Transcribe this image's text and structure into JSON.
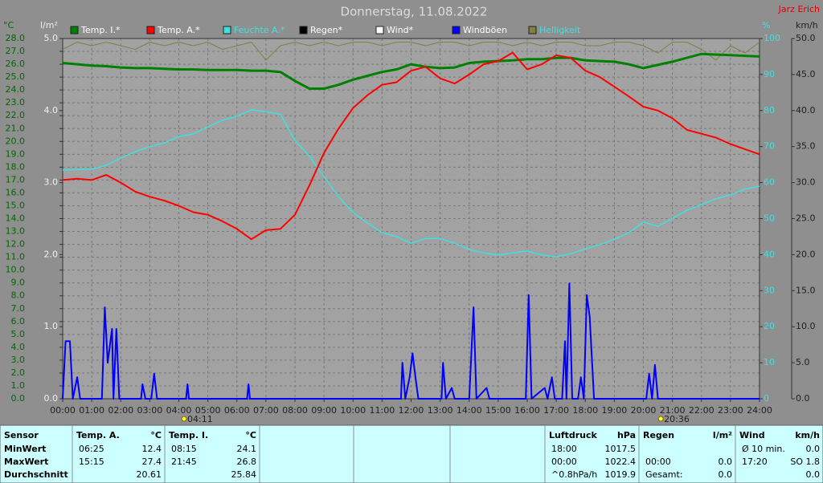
{
  "header": {
    "title": "Donnerstag, 11.08.2022",
    "author": "Jarz Erich"
  },
  "chart_data": {
    "type": "line",
    "ylabel": "°C",
    "y4label": "l/m²",
    "y2label": "%",
    "y3label": "km/h",
    "xlim": [
      0,
      24
    ],
    "xticks": [
      {
        "value": 0,
        "label": "00:00"
      },
      {
        "value": 1,
        "label": "01:00"
      },
      {
        "value": 2,
        "label": "02:00"
      },
      {
        "value": 3,
        "label": "03:00"
      },
      {
        "value": 4,
        "label": "04:00"
      },
      {
        "value": 5,
        "label": "05:00"
      },
      {
        "value": 6,
        "label": "06:00"
      },
      {
        "value": 7,
        "label": "07:00"
      },
      {
        "value": 8,
        "label": "08:00"
      },
      {
        "value": 9,
        "label": "09:00"
      },
      {
        "value": 10,
        "label": "10:00"
      },
      {
        "value": 11,
        "label": "11:00"
      },
      {
        "value": 12,
        "label": "12:00"
      },
      {
        "value": 13,
        "label": "13:00"
      },
      {
        "value": 14,
        "label": "14:00"
      },
      {
        "value": 15,
        "label": "15:00"
      },
      {
        "value": 16,
        "label": "16:00"
      },
      {
        "value": 17,
        "label": "17:00"
      },
      {
        "value": 18,
        "label": "18:00"
      },
      {
        "value": 19,
        "label": "19:00"
      },
      {
        "value": 20,
        "label": "20:00"
      },
      {
        "value": 21,
        "label": "21:00"
      },
      {
        "value": 22,
        "label": "22:00"
      },
      {
        "value": 23,
        "label": "23:00"
      },
      {
        "value": 24,
        "label": "24:00"
      }
    ],
    "ylim": [
      0,
      28
    ],
    "yticks": [
      {
        "value": 0,
        "label": "0.0"
      },
      {
        "value": 1,
        "label": "1.0"
      },
      {
        "value": 2,
        "label": "2.0"
      },
      {
        "value": 3,
        "label": "3.0"
      },
      {
        "value": 4,
        "label": "4.0"
      },
      {
        "value": 5,
        "label": "5.0"
      },
      {
        "value": 6,
        "label": "6.0"
      },
      {
        "value": 7,
        "label": "7.0"
      },
      {
        "value": 8,
        "label": "8.0"
      },
      {
        "value": 9,
        "label": "9.0"
      },
      {
        "value": 10,
        "label": "10.0"
      },
      {
        "value": 11,
        "label": "11.0"
      },
      {
        "value": 12,
        "label": "12.0"
      },
      {
        "value": 13,
        "label": "13.0"
      },
      {
        "value": 14,
        "label": "14.0"
      },
      {
        "value": 15,
        "label": "15.0"
      },
      {
        "value": 16,
        "label": "16.0"
      },
      {
        "value": 17,
        "label": "17.0"
      },
      {
        "value": 18,
        "label": "18.0"
      },
      {
        "value": 19,
        "label": "19.0"
      },
      {
        "value": 20,
        "label": "20.0"
      },
      {
        "value": 21,
        "label": "21.0"
      },
      {
        "value": 22,
        "label": "22.0"
      },
      {
        "value": 23,
        "label": "23.0"
      },
      {
        "value": 24,
        "label": "24.0"
      },
      {
        "value": 25,
        "label": "25.0"
      },
      {
        "value": 26,
        "label": "26.0"
      },
      {
        "value": 27,
        "label": "27.0"
      },
      {
        "value": 28,
        "label": "28.0"
      }
    ],
    "y4lim": [
      0,
      5
    ],
    "y4ticks": [
      {
        "value": 0,
        "label": "0.0"
      },
      {
        "value": 1,
        "label": "1.0"
      },
      {
        "value": 2,
        "label": "2.0"
      },
      {
        "value": 3,
        "label": "3.0"
      },
      {
        "value": 4,
        "label": "4.0"
      },
      {
        "value": 5,
        "label": "5.0"
      }
    ],
    "y2lim": [
      0,
      100
    ],
    "y2ticks": [
      0,
      10,
      20,
      30,
      40,
      50,
      60,
      70,
      80,
      90,
      100
    ],
    "y3lim": [
      0,
      50
    ],
    "y3ticks": [
      {
        "value": 0,
        "label": "0.0"
      },
      {
        "value": 5,
        "label": "5.0"
      },
      {
        "value": 10,
        "label": "10.0"
      },
      {
        "value": 15,
        "label": "15.0"
      },
      {
        "value": 20,
        "label": "20.0"
      },
      {
        "value": 25,
        "label": "25.0"
      },
      {
        "value": 30,
        "label": "30.0"
      },
      {
        "value": 35,
        "label": "35.0"
      },
      {
        "value": 40,
        "label": "40.0"
      },
      {
        "value": 45,
        "label": "45.0"
      },
      {
        "value": 50,
        "label": "50.0"
      }
    ],
    "grid": true,
    "x": [
      0,
      0.5,
      1,
      1.5,
      2,
      2.5,
      3,
      3.5,
      4,
      4.5,
      5,
      5.5,
      6,
      6.5,
      7,
      7.5,
      8,
      8.5,
      9,
      9.5,
      10,
      10.5,
      11,
      11.5,
      12,
      12.5,
      13,
      13.5,
      14,
      14.5,
      15,
      15.5,
      16,
      16.5,
      17,
      17.5,
      18,
      18.5,
      19,
      19.5,
      20,
      20.5,
      21,
      21.5,
      22,
      22.5,
      23,
      23.5,
      24
    ],
    "series": [
      {
        "name": "Temp. I.*",
        "color": "#008000",
        "legend_text_color": "#ffffff",
        "axis": "y",
        "width": 3,
        "values": [
          26.1,
          26.0,
          25.9,
          25.85,
          25.75,
          25.7,
          25.7,
          25.65,
          25.6,
          25.6,
          25.55,
          25.55,
          25.55,
          25.5,
          25.5,
          25.4,
          24.7,
          24.1,
          24.1,
          24.4,
          24.8,
          25.1,
          25.4,
          25.6,
          26.0,
          25.8,
          25.7,
          25.75,
          26.1,
          26.2,
          26.25,
          26.3,
          26.4,
          26.4,
          26.5,
          26.5,
          26.3,
          26.25,
          26.2,
          26.0,
          25.7,
          25.95,
          26.2,
          26.5,
          26.8,
          26.75,
          26.7,
          26.65,
          26.6
        ]
      },
      {
        "name": "Temp. A.*",
        "color": "#ff0000",
        "legend_text_color": "#ffffff",
        "axis": "y",
        "width": 2,
        "values": [
          17.0,
          17.1,
          17.0,
          17.4,
          16.8,
          16.1,
          15.7,
          15.4,
          15.0,
          14.5,
          14.3,
          13.8,
          13.2,
          12.4,
          13.1,
          13.2,
          14.3,
          16.6,
          19.1,
          21.0,
          22.6,
          23.6,
          24.4,
          24.6,
          25.5,
          25.8,
          24.9,
          24.5,
          25.2,
          26.0,
          26.25,
          26.9,
          25.6,
          26.0,
          26.7,
          26.5,
          25.5,
          25.0,
          24.25,
          23.5,
          22.7,
          22.4,
          21.8,
          20.9,
          20.6,
          20.3,
          19.8,
          19.4,
          19.0
        ]
      },
      {
        "name": "Feuchte A.*",
        "color": "#40e0e0",
        "legend_text_color": "#40e0e0",
        "axis": "y2",
        "width": 1.5,
        "values": [
          63.5,
          63.6,
          63.7,
          64.8,
          66.8,
          68.6,
          70,
          71,
          72.8,
          73.5,
          75.5,
          77.3,
          78.4,
          80.2,
          79.7,
          79,
          71.7,
          67.3,
          61.7,
          56.1,
          51.7,
          48.8,
          46.1,
          45,
          43.2,
          44.5,
          44.5,
          43.2,
          41.4,
          40.5,
          39.9,
          40.5,
          41,
          39.9,
          39.4,
          40.3,
          41.6,
          42.8,
          44.3,
          46.1,
          49,
          47.9,
          50.1,
          52.3,
          53.9,
          55.5,
          56.6,
          58.2,
          59
        ]
      },
      {
        "name": "Regen*",
        "color": "#000000",
        "legend_text_color": "#ffffff",
        "axis": "y4"
      },
      {
        "name": "Wind*",
        "color": "#ffffff",
        "legend_text_color": "#ffffff",
        "axis": "y3"
      },
      {
        "name": "Windböen",
        "color": "#0000ff",
        "legend_text_color": "#ffffff",
        "axis": "y3",
        "width": 2,
        "x": [
          0,
          0.1,
          0.25,
          0.35,
          0.5,
          0.6,
          1.35,
          1.45,
          1.55,
          1.7,
          1.75,
          1.85,
          1.95,
          2.7,
          2.75,
          2.85,
          3.05,
          3.15,
          3.25,
          4.25,
          4.3,
          4.35,
          6.35,
          6.4,
          6.45,
          11.65,
          11.7,
          11.8,
          11.95,
          12.05,
          12.15,
          12.25,
          13.05,
          13.1,
          13.2,
          13.4,
          13.5,
          14.0,
          14.15,
          14.25,
          14.6,
          14.7,
          15.95,
          16.05,
          16.15,
          16.6,
          16.7,
          16.85,
          16.95,
          17.2,
          17.3,
          17.35,
          17.45,
          17.55,
          17.75,
          17.85,
          17.95,
          18.05,
          18.15,
          18.3,
          20.1,
          20.2,
          20.3,
          20.4,
          20.5,
          24
        ],
        "values": [
          0,
          8,
          8,
          0,
          3,
          0,
          0,
          12.7,
          5,
          9.7,
          0,
          9.7,
          0,
          0,
          2,
          0,
          0,
          3.5,
          0,
          0,
          2,
          0,
          0,
          2,
          0,
          0,
          5,
          0,
          3,
          6.3,
          3,
          0,
          0,
          5,
          0,
          1.5,
          0,
          0,
          12.7,
          0,
          1.5,
          0,
          0,
          14.4,
          0,
          1.5,
          0,
          3,
          0,
          0,
          8,
          0,
          16,
          0,
          0,
          3,
          0,
          14.4,
          11.4,
          0,
          0,
          3.5,
          0,
          4.7,
          0,
          0
        ]
      },
      {
        "name": "Helligkeit",
        "color": "#808040",
        "legend_text_color": "#40e0e0",
        "axis": "y2",
        "width": 1,
        "values": [
          97,
          99,
          98,
          99,
          98,
          97,
          99,
          98,
          99,
          98,
          99,
          97,
          98,
          99,
          94,
          98,
          99,
          98,
          99,
          98,
          99,
          99,
          98,
          99,
          99,
          98,
          99,
          99,
          98,
          99,
          99,
          98,
          99,
          98,
          99,
          99,
          98,
          98,
          99,
          99,
          98,
          96,
          99,
          99,
          97,
          94,
          98,
          96,
          99
        ]
      }
    ],
    "annotations": [
      {
        "text": "04:11",
        "x": 4.18
      },
      {
        "text": "20:36",
        "x": 20.6
      }
    ]
  },
  "table": {
    "sections": [
      {
        "header": [
          "Sensor"
        ],
        "rows": [
          [
            "MinWert"
          ],
          [
            "MaxWert"
          ],
          [
            "Durchschnitt"
          ]
        ]
      },
      {
        "header": [
          "Temp. A.",
          "°C"
        ],
        "rows": [
          [
            "06:25",
            "12.4"
          ],
          [
            "15:15",
            "27.4"
          ],
          [
            null,
            "20.61"
          ]
        ]
      },
      {
        "header": [
          "Temp. I.",
          "°C"
        ],
        "rows": [
          [
            "08:15",
            "24.1"
          ],
          [
            "21:45",
            "26.8"
          ],
          [
            null,
            "25.84"
          ]
        ]
      },
      {
        "header": [
          "Luftdruck",
          "hPa"
        ],
        "rows": [
          [
            "18:00",
            "1017.5"
          ],
          [
            "00:00",
            "1022.4"
          ],
          [
            "^0.8hPa/h",
            "1019.9"
          ]
        ]
      },
      {
        "header": [
          "Regen",
          "l/m²"
        ],
        "rows": [
          [],
          [
            "00:00",
            "0.0"
          ],
          [
            "Gesamt:",
            "0.0"
          ]
        ]
      },
      {
        "header": [
          "Wind",
          "km/h"
        ],
        "rows": [
          [
            "Ø 10 min.",
            "0.0"
          ],
          [
            "17:20",
            "SO 1.8"
          ],
          [
            null,
            "0.0"
          ]
        ]
      }
    ]
  }
}
